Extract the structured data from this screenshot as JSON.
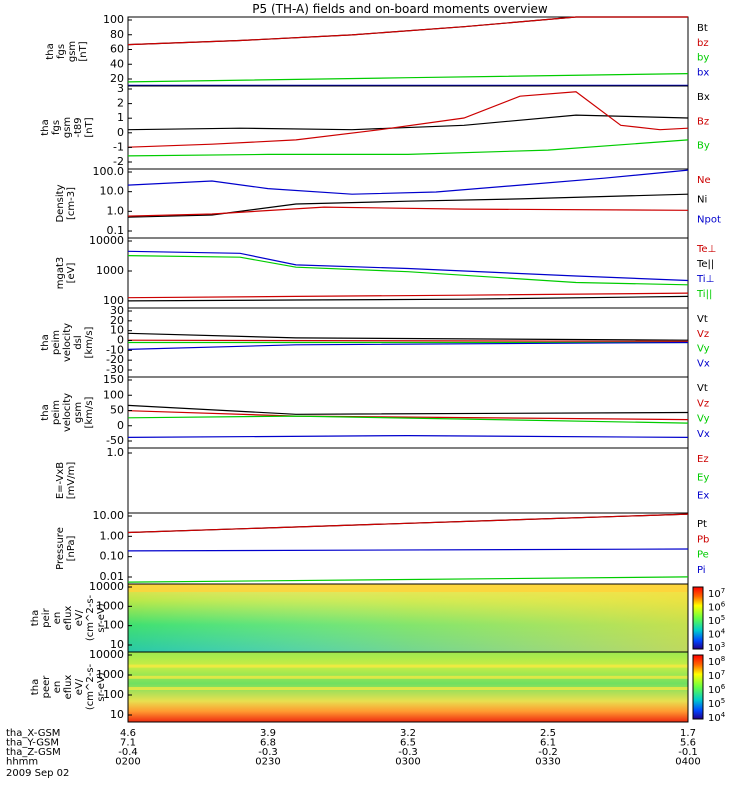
{
  "title": "P5 (TH-A) fields and on-board moments overview",
  "date_label": "2009 Sep 02",
  "footer": {
    "rows": [
      {
        "label": "tha_X-GSM",
        "values": [
          "4.6",
          "3.9",
          "3.2",
          "2.5",
          "1.7"
        ]
      },
      {
        "label": "tha_Y-GSM",
        "values": [
          "7.1",
          "6.8",
          "6.5",
          "6.1",
          "5.6"
        ]
      },
      {
        "label": "tha_Z-GSM",
        "values": [
          "-0.4",
          "-0.3",
          "-0.3",
          "-0.2",
          "-0.1"
        ]
      },
      {
        "label": "hhmm",
        "values": [
          "0200",
          "0230",
          "0300",
          "0330",
          "0400"
        ]
      }
    ]
  },
  "colorbars": [
    {
      "ticks": [
        "10^7",
        "10^6",
        "10^5",
        "10^4",
        "10^3"
      ]
    },
    {
      "ticks": [
        "10^8",
        "10^7",
        "10^6",
        "10^5",
        "10^4"
      ]
    }
  ],
  "chart_data": [
    {
      "type": "line",
      "ylabel": [
        "tha",
        "fgs",
        "gsm",
        "[nT]"
      ],
      "ylim": [
        0,
        100
      ],
      "yticks": [
        "100",
        "80",
        "60",
        "40",
        "20"
      ],
      "legend": [
        {
          "name": "Bt",
          "color": "#000000"
        },
        {
          "name": "bz",
          "color": "#cc0000"
        },
        {
          "name": "by",
          "color": "#00cc00"
        },
        {
          "name": "bx",
          "color": "#0000cc"
        }
      ],
      "series": [
        {
          "name": "Bt",
          "color": "#000000",
          "x": [
            0,
            0.2,
            0.4,
            0.6,
            0.8,
            1.0
          ],
          "values": [
            60,
            66,
            74,
            86,
            104,
            104
          ]
        },
        {
          "name": "bz",
          "color": "#cc0000",
          "x": [
            0,
            0.2,
            0.4,
            0.6,
            0.8,
            1.0
          ],
          "values": [
            60,
            66,
            74,
            86,
            104,
            104
          ]
        },
        {
          "name": "by",
          "color": "#00cc00",
          "x": [
            0,
            0.5,
            1.0
          ],
          "values": [
            6,
            12,
            18
          ]
        },
        {
          "name": "bx",
          "color": "#0000cc",
          "x": [
            0,
            1.0
          ],
          "values": [
            1,
            1
          ]
        }
      ]
    },
    {
      "type": "line",
      "ylabel": [
        "tha",
        "fgs",
        "gsm",
        "-t89",
        "[nT]"
      ],
      "ylim": [
        -2.5,
        3.2
      ],
      "yticks": [
        "3",
        "2",
        "1",
        "0",
        "-1",
        "-2"
      ],
      "legend": [
        {
          "name": "Bx",
          "color": "#000000"
        },
        {
          "name": "Bz",
          "color": "#cc0000"
        },
        {
          "name": "By",
          "color": "#00cc00"
        }
      ],
      "series": [
        {
          "name": "Bx",
          "color": "#000000",
          "x": [
            0,
            0.2,
            0.4,
            0.6,
            0.8,
            1.0
          ],
          "values": [
            0.2,
            0.3,
            0.2,
            0.5,
            1.2,
            1.0
          ]
        },
        {
          "name": "Bz",
          "color": "#cc0000",
          "x": [
            0,
            0.15,
            0.3,
            0.45,
            0.6,
            0.7,
            0.8,
            0.88,
            0.95,
            1.0
          ],
          "values": [
            -1,
            -0.8,
            -0.5,
            0.2,
            1,
            2.5,
            2.8,
            0.5,
            0.2,
            0.3
          ]
        },
        {
          "name": "By",
          "color": "#00cc00",
          "x": [
            0,
            0.25,
            0.5,
            0.75,
            1.0
          ],
          "values": [
            -1.6,
            -1.5,
            -1.5,
            -1.2,
            -0.5
          ]
        }
      ]
    },
    {
      "type": "line",
      "ylabel": [
        "Density",
        "[cm-3]"
      ],
      "ylim": [
        0.1,
        100
      ],
      "yscale": "log",
      "yticks": [
        "100.0",
        "10.0",
        "1.0",
        "0.1"
      ],
      "legend": [
        {
          "name": "Ne",
          "color": "#cc0000"
        },
        {
          "name": "Ni",
          "color": "#000000"
        },
        {
          "name": "Npot",
          "color": "#0000cc"
        }
      ],
      "series": [
        {
          "name": "Npot",
          "color": "#0000cc",
          "x": [
            0,
            0.15,
            0.25,
            0.4,
            0.55,
            0.7,
            0.85,
            1.0
          ],
          "values": [
            20,
            30,
            14,
            8,
            10,
            20,
            40,
            90
          ]
        },
        {
          "name": "Ni",
          "color": "#000000",
          "x": [
            0,
            0.15,
            0.3,
            0.5,
            0.7,
            1.0
          ],
          "values": [
            0.8,
            1.0,
            3,
            4,
            5,
            8
          ]
        },
        {
          "name": "Ne",
          "color": "#cc0000",
          "x": [
            0,
            0.15,
            0.35,
            0.6,
            1.0
          ],
          "values": [
            0.9,
            1.1,
            2.2,
            1.8,
            1.6
          ]
        }
      ]
    },
    {
      "type": "line",
      "ylabel": [
        "mgat3",
        "[eV]"
      ],
      "ylim": [
        40,
        10000
      ],
      "yscale": "log",
      "yticks": [
        "10000",
        "1000",
        "100"
      ],
      "legend": [
        {
          "name": "Te⊥",
          "color": "#cc0000"
        },
        {
          "name": "Te||",
          "color": "#000000"
        },
        {
          "name": "Ti⊥",
          "color": "#0000cc"
        },
        {
          "name": "Ti||",
          "color": "#00cc00"
        }
      ],
      "series": [
        {
          "name": "Ti⊥",
          "color": "#0000cc",
          "x": [
            0,
            0.2,
            0.3,
            0.5,
            0.8,
            1.0
          ],
          "values": [
            3500,
            3000,
            1200,
            900,
            500,
            350
          ]
        },
        {
          "name": "Ti||",
          "color": "#00cc00",
          "x": [
            0,
            0.2,
            0.3,
            0.5,
            0.8,
            1.0
          ],
          "values": [
            2500,
            2200,
            1000,
            700,
            300,
            250
          ]
        },
        {
          "name": "Te⊥",
          "color": "#cc0000",
          "x": [
            0,
            0.3,
            0.6,
            1.0
          ],
          "values": [
            90,
            100,
            110,
            130
          ]
        },
        {
          "name": "Te||",
          "color": "#000000",
          "x": [
            0,
            0.3,
            0.6,
            1.0
          ],
          "values": [
            70,
            75,
            80,
            100
          ]
        }
      ]
    },
    {
      "type": "line",
      "ylabel": [
        "tha",
        "peim",
        "velocity",
        "dsl",
        "[km/s]"
      ],
      "ylim": [
        -30,
        30
      ],
      "yticks": [
        "30",
        "20",
        "10",
        "0",
        "-10",
        "-20",
        "-30"
      ],
      "legend": [
        {
          "name": "Vt",
          "color": "#000000"
        },
        {
          "name": "Vz",
          "color": "#cc0000"
        },
        {
          "name": "Vy",
          "color": "#00cc00"
        },
        {
          "name": "Vx",
          "color": "#0000cc"
        }
      ],
      "series": [
        {
          "name": "Vt",
          "color": "#000000",
          "x": [
            0,
            0.3,
            1.0
          ],
          "values": [
            8,
            4,
            2
          ]
        },
        {
          "name": "Vz",
          "color": "#cc0000",
          "x": [
            0,
            1.0
          ],
          "values": [
            2,
            1
          ]
        },
        {
          "name": "Vy",
          "color": "#00cc00",
          "x": [
            0,
            1.0
          ],
          "values": [
            0,
            0
          ]
        },
        {
          "name": "Vx",
          "color": "#0000cc",
          "x": [
            0,
            0.3,
            1.0
          ],
          "values": [
            -6,
            -2,
            0
          ]
        }
      ]
    },
    {
      "type": "line",
      "ylabel": [
        "tha",
        "peim",
        "velocity",
        "gsm",
        "[km/s]"
      ],
      "ylim": [
        -50,
        150
      ],
      "yticks": [
        "150",
        "100",
        "50",
        "0",
        "-50"
      ],
      "legend": [
        {
          "name": "Vt",
          "color": "#000000"
        },
        {
          "name": "Vz",
          "color": "#cc0000"
        },
        {
          "name": "Vy",
          "color": "#00cc00"
        },
        {
          "name": "Vx",
          "color": "#0000cc"
        }
      ],
      "series": [
        {
          "name": "Vt",
          "color": "#000000",
          "x": [
            0,
            0.3,
            1.0
          ],
          "values": [
            70,
            45,
            50
          ]
        },
        {
          "name": "Vz",
          "color": "#cc0000",
          "x": [
            0,
            0.3,
            1.0
          ],
          "values": [
            55,
            40,
            30
          ]
        },
        {
          "name": "Vy",
          "color": "#00cc00",
          "x": [
            0,
            0.3,
            1.0
          ],
          "values": [
            35,
            40,
            20
          ]
        },
        {
          "name": "Vx",
          "color": "#0000cc",
          "x": [
            0,
            0.5,
            1.0
          ],
          "values": [
            -20,
            -15,
            -20
          ]
        }
      ]
    },
    {
      "type": "line",
      "ylabel": [
        "E=-VxB",
        "[mV/m]"
      ],
      "ylim": [
        -1,
        1
      ],
      "yticks": [
        "1.0"
      ],
      "legend": [
        {
          "name": "Ez",
          "color": "#cc0000"
        },
        {
          "name": "Ey",
          "color": "#00cc00"
        },
        {
          "name": "Ex",
          "color": "#0000cc"
        }
      ],
      "series": []
    },
    {
      "type": "line",
      "ylabel": [
        "Pressure",
        "[nPa]"
      ],
      "ylim": [
        0.01,
        10
      ],
      "yscale": "log",
      "yticks": [
        "10.00",
        "1.00",
        "0.10",
        "0.01"
      ],
      "legend": [
        {
          "name": "Pt",
          "color": "#000000"
        },
        {
          "name": "Pb",
          "color": "#cc0000"
        },
        {
          "name": "Pe",
          "color": "#00cc00"
        },
        {
          "name": "Pi",
          "color": "#0000cc"
        }
      ],
      "series": [
        {
          "name": "Pt",
          "color": "#000000",
          "x": [
            0,
            1.0
          ],
          "values": [
            1.5,
            9
          ]
        },
        {
          "name": "Pb",
          "color": "#cc0000",
          "x": [
            0,
            1.0
          ],
          "values": [
            1.5,
            9
          ]
        },
        {
          "name": "Pi",
          "color": "#0000cc",
          "x": [
            0,
            1.0
          ],
          "values": [
            0.25,
            0.3
          ]
        },
        {
          "name": "Pe",
          "color": "#00cc00",
          "x": [
            0,
            1.0
          ],
          "values": [
            0.012,
            0.02
          ]
        }
      ]
    },
    {
      "type": "heatmap",
      "ylabel": [
        "tha",
        "peir",
        "en",
        "eflux",
        "eV/",
        "(cm^2-s-",
        "sr-eV)"
      ],
      "ylim": [
        10,
        20000
      ],
      "yscale": "log",
      "yticks": [
        "10000",
        "1000",
        "100",
        "10"
      ]
    },
    {
      "type": "heatmap",
      "ylabel": [
        "tha",
        "peer",
        "en",
        "eflux",
        "eV/",
        "(cm^2-s-",
        "sr-eV)"
      ],
      "ylim": [
        10,
        20000
      ],
      "yscale": "log",
      "yticks": [
        "10000",
        "1000",
        "100",
        "10"
      ]
    }
  ]
}
